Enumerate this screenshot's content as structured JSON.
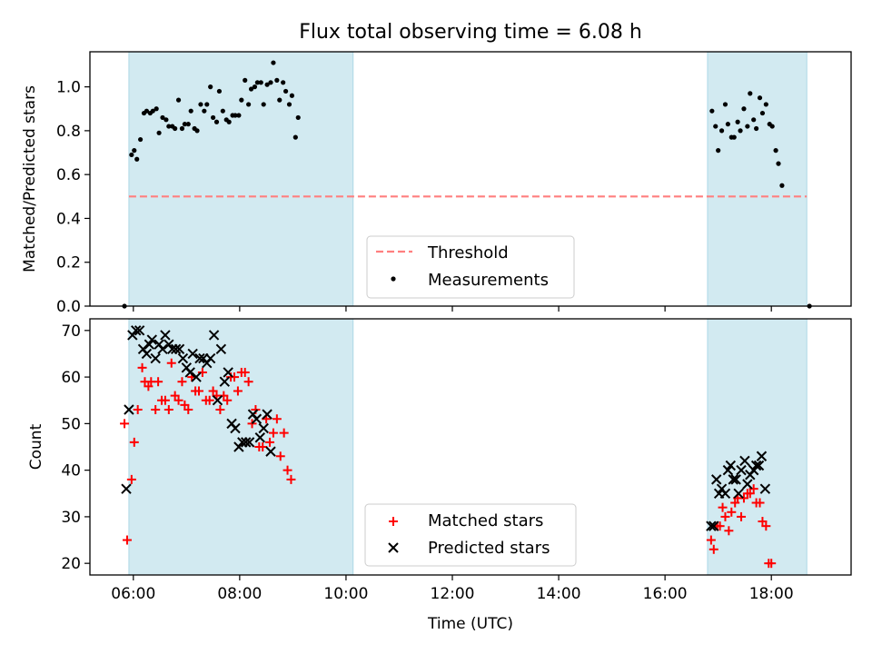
{
  "title": "Flux total observing time = 6.08 h",
  "colors": {
    "band": "#add8e6",
    "threshold": "#ff7f7f",
    "matched": "#ff0000",
    "predicted": "#000000",
    "measurement": "#000000"
  },
  "chart_data": [
    {
      "type": "scatter",
      "panel": "top",
      "title": "Flux total observing time = 6.08 h",
      "xlabel": "",
      "ylabel": "Matched/Predicted stars",
      "xlim": [
        "05:11",
        "19:30"
      ],
      "ylim": [
        0.0,
        1.16
      ],
      "yticks": [
        0.0,
        0.2,
        0.4,
        0.6,
        0.8,
        1.0
      ],
      "ytick_labels": [
        "0.0",
        "0.2",
        "0.4",
        "0.6",
        "0.8",
        "1.0"
      ],
      "grid": false,
      "legend_position": "lower-center",
      "shaded_intervals": [
        [
          "05:55",
          "10:08"
        ],
        [
          "16:48",
          "18:40"
        ]
      ],
      "threshold": {
        "name": "Threshold",
        "value": 0.5,
        "x_range": [
          "05:55",
          "18:40"
        ]
      },
      "series": [
        {
          "name": "Measurements",
          "points": [
            [
              "05:50",
              0.0
            ],
            [
              "05:58",
              0.69
            ],
            [
              "06:01",
              0.71
            ],
            [
              "06:04",
              0.67
            ],
            [
              "06:08",
              0.76
            ],
            [
              "06:12",
              0.88
            ],
            [
              "06:15",
              0.89
            ],
            [
              "06:19",
              0.88
            ],
            [
              "06:22",
              0.89
            ],
            [
              "06:26",
              0.9
            ],
            [
              "06:29",
              0.79
            ],
            [
              "06:33",
              0.86
            ],
            [
              "06:37",
              0.85
            ],
            [
              "06:40",
              0.82
            ],
            [
              "06:44",
              0.82
            ],
            [
              "06:47",
              0.81
            ],
            [
              "06:51",
              0.94
            ],
            [
              "06:55",
              0.81
            ],
            [
              "06:58",
              0.83
            ],
            [
              "07:02",
              0.83
            ],
            [
              "07:05",
              0.89
            ],
            [
              "07:09",
              0.81
            ],
            [
              "07:12",
              0.8
            ],
            [
              "07:16",
              0.92
            ],
            [
              "07:20",
              0.89
            ],
            [
              "07:23",
              0.92
            ],
            [
              "07:27",
              1.0
            ],
            [
              "07:30",
              0.86
            ],
            [
              "07:34",
              0.84
            ],
            [
              "07:37",
              0.98
            ],
            [
              "07:41",
              0.89
            ],
            [
              "07:45",
              0.85
            ],
            [
              "07:48",
              0.84
            ],
            [
              "07:52",
              0.87
            ],
            [
              "07:55",
              0.87
            ],
            [
              "07:59",
              0.87
            ],
            [
              "08:02",
              0.94
            ],
            [
              "08:06",
              1.03
            ],
            [
              "08:10",
              0.92
            ],
            [
              "08:13",
              0.99
            ],
            [
              "08:17",
              1.0
            ],
            [
              "08:20",
              1.02
            ],
            [
              "08:24",
              1.02
            ],
            [
              "08:27",
              0.92
            ],
            [
              "08:31",
              1.01
            ],
            [
              "08:35",
              1.02
            ],
            [
              "08:38",
              1.11
            ],
            [
              "08:42",
              1.03
            ],
            [
              "08:45",
              0.94
            ],
            [
              "08:49",
              1.02
            ],
            [
              "08:52",
              0.98
            ],
            [
              "08:56",
              0.92
            ],
            [
              "08:59",
              0.96
            ],
            [
              "09:03",
              0.77
            ],
            [
              "09:06",
              0.86
            ],
            [
              "16:53",
              0.89
            ],
            [
              "16:57",
              0.82
            ],
            [
              "17:00",
              0.71
            ],
            [
              "17:04",
              0.8
            ],
            [
              "17:08",
              0.92
            ],
            [
              "17:11",
              0.83
            ],
            [
              "17:15",
              0.77
            ],
            [
              "17:18",
              0.77
            ],
            [
              "17:22",
              0.84
            ],
            [
              "17:25",
              0.8
            ],
            [
              "17:29",
              0.9
            ],
            [
              "17:33",
              0.82
            ],
            [
              "17:36",
              0.97
            ],
            [
              "17:40",
              0.85
            ],
            [
              "17:43",
              0.81
            ],
            [
              "17:47",
              0.95
            ],
            [
              "17:50",
              0.88
            ],
            [
              "17:54",
              0.92
            ],
            [
              "17:58",
              0.83
            ],
            [
              "18:01",
              0.82
            ],
            [
              "18:05",
              0.71
            ],
            [
              "18:08",
              0.65
            ],
            [
              "18:12",
              0.55
            ],
            [
              "18:43",
              0.0
            ]
          ]
        }
      ]
    },
    {
      "type": "scatter",
      "panel": "bottom",
      "xlabel": "Time (UTC)",
      "ylabel": "Count",
      "xlim": [
        "05:11",
        "19:30"
      ],
      "ylim": [
        17.5,
        72.5
      ],
      "xticks": [
        "06:00",
        "08:00",
        "10:00",
        "12:00",
        "14:00",
        "16:00",
        "18:00"
      ],
      "xtick_labels": [
        "06:00",
        "08:00",
        "10:00",
        "12:00",
        "14:00",
        "16:00",
        "18:00"
      ],
      "yticks": [
        20,
        30,
        40,
        50,
        60,
        70
      ],
      "ytick_labels": [
        "20",
        "30",
        "40",
        "50",
        "60",
        "70"
      ],
      "grid": false,
      "legend_position": "lower-center",
      "shaded_intervals": [
        [
          "05:55",
          "10:08"
        ],
        [
          "16:48",
          "18:40"
        ]
      ],
      "series": [
        {
          "name": "Matched stars",
          "marker": "+",
          "points": [
            [
              "05:50",
              50
            ],
            [
              "05:53",
              25
            ],
            [
              "05:58",
              38
            ],
            [
              "06:01",
              46
            ],
            [
              "06:05",
              53
            ],
            [
              "06:10",
              62
            ],
            [
              "06:13",
              59
            ],
            [
              "06:17",
              58
            ],
            [
              "06:20",
              59
            ],
            [
              "06:25",
              53
            ],
            [
              "06:28",
              59
            ],
            [
              "06:32",
              55
            ],
            [
              "06:36",
              55
            ],
            [
              "06:40",
              53
            ],
            [
              "06:43",
              63
            ],
            [
              "06:47",
              56
            ],
            [
              "06:51",
              55
            ],
            [
              "06:55",
              59
            ],
            [
              "06:58",
              54
            ],
            [
              "07:02",
              53
            ],
            [
              "07:06",
              60
            ],
            [
              "07:10",
              57
            ],
            [
              "07:14",
              57
            ],
            [
              "07:18",
              61
            ],
            [
              "07:22",
              55
            ],
            [
              "07:26",
              55
            ],
            [
              "07:30",
              57
            ],
            [
              "07:34",
              56
            ],
            [
              "07:38",
              53
            ],
            [
              "07:42",
              56
            ],
            [
              "07:46",
              55
            ],
            [
              "07:50",
              60
            ],
            [
              "07:54",
              60
            ],
            [
              "07:58",
              57
            ],
            [
              "08:02",
              61
            ],
            [
              "08:06",
              61
            ],
            [
              "08:10",
              59
            ],
            [
              "08:14",
              50
            ],
            [
              "08:18",
              53
            ],
            [
              "08:22",
              45
            ],
            [
              "08:26",
              45
            ],
            [
              "08:30",
              51
            ],
            [
              "08:34",
              46
            ],
            [
              "08:38",
              48
            ],
            [
              "08:42",
              51
            ],
            [
              "08:46",
              43
            ],
            [
              "08:50",
              48
            ],
            [
              "08:54",
              40
            ],
            [
              "08:58",
              38
            ],
            [
              "16:52",
              25
            ],
            [
              "16:55",
              23
            ],
            [
              "16:59",
              28
            ],
            [
              "17:02",
              28
            ],
            [
              "17:05",
              32
            ],
            [
              "17:08",
              30
            ],
            [
              "17:12",
              27
            ],
            [
              "17:15",
              31
            ],
            [
              "17:19",
              33
            ],
            [
              "17:22",
              34
            ],
            [
              "17:26",
              30
            ],
            [
              "17:29",
              34
            ],
            [
              "17:33",
              35
            ],
            [
              "17:36",
              35
            ],
            [
              "17:40",
              36
            ],
            [
              "17:43",
              33
            ],
            [
              "17:47",
              33
            ],
            [
              "17:50",
              29
            ],
            [
              "17:54",
              28
            ],
            [
              "17:57",
              20
            ],
            [
              "18:00",
              20
            ]
          ]
        },
        {
          "name": "Predicted stars",
          "marker": "x",
          "points": [
            [
              "05:52",
              36
            ],
            [
              "05:55",
              53
            ],
            [
              "05:59",
              69
            ],
            [
              "06:03",
              70
            ],
            [
              "06:07",
              70
            ],
            [
              "06:11",
              66
            ],
            [
              "06:15",
              65
            ],
            [
              "06:18",
              67
            ],
            [
              "06:21",
              68
            ],
            [
              "06:25",
              64
            ],
            [
              "06:29",
              67
            ],
            [
              "06:33",
              66
            ],
            [
              "06:36",
              69
            ],
            [
              "06:40",
              67
            ],
            [
              "06:44",
              66
            ],
            [
              "06:48",
              66
            ],
            [
              "06:52",
              66
            ],
            [
              "06:56",
              64
            ],
            [
              "07:00",
              62
            ],
            [
              "07:04",
              61
            ],
            [
              "07:07",
              65
            ],
            [
              "07:11",
              60
            ],
            [
              "07:15",
              64
            ],
            [
              "07:19",
              64
            ],
            [
              "07:23",
              63
            ],
            [
              "07:27",
              64
            ],
            [
              "07:31",
              69
            ],
            [
              "07:35",
              55
            ],
            [
              "07:39",
              66
            ],
            [
              "07:43",
              59
            ],
            [
              "07:47",
              61
            ],
            [
              "07:51",
              50
            ],
            [
              "07:55",
              49
            ],
            [
              "07:59",
              45
            ],
            [
              "08:03",
              46
            ],
            [
              "08:07",
              46
            ],
            [
              "08:11",
              46
            ],
            [
              "08:15",
              52
            ],
            [
              "08:19",
              51
            ],
            [
              "08:23",
              47
            ],
            [
              "08:27",
              49
            ],
            [
              "08:31",
              52
            ],
            [
              "08:35",
              44
            ],
            [
              "16:52",
              28
            ],
            [
              "16:55",
              28
            ],
            [
              "16:58",
              38
            ],
            [
              "17:01",
              35
            ],
            [
              "17:04",
              36
            ],
            [
              "17:08",
              35
            ],
            [
              "17:11",
              40
            ],
            [
              "17:14",
              41
            ],
            [
              "17:17",
              38
            ],
            [
              "17:20",
              38
            ],
            [
              "17:23",
              35
            ],
            [
              "17:26",
              40
            ],
            [
              "17:30",
              42
            ],
            [
              "17:33",
              37
            ],
            [
              "17:36",
              39
            ],
            [
              "17:40",
              40
            ],
            [
              "17:43",
              41
            ],
            [
              "17:46",
              41
            ],
            [
              "17:49",
              43
            ],
            [
              "17:53",
              36
            ]
          ]
        }
      ]
    }
  ],
  "legends": {
    "top": {
      "threshold_label": "Threshold",
      "measurements_label": "Measurements"
    },
    "bottom": {
      "matched_label": "Matched stars",
      "predicted_label": "Predicted stars"
    }
  }
}
